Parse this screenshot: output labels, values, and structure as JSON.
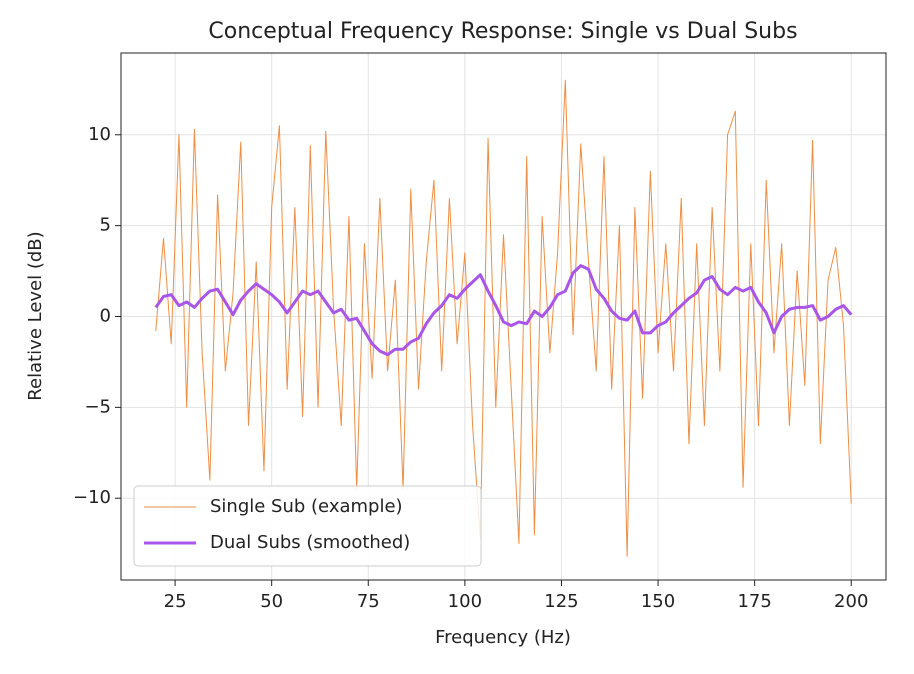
{
  "chart_data": {
    "type": "line",
    "title": "Conceptual Frequency Response: Single vs Dual Subs",
    "x_label": "Frequency (Hz)",
    "y_label": "Relative Level (dB)",
    "x": [
      20,
      22,
      24,
      26,
      28,
      30,
      32,
      34,
      36,
      38,
      40,
      42,
      44,
      46,
      48,
      50,
      52,
      54,
      56,
      58,
      60,
      62,
      64,
      66,
      68,
      70,
      72,
      74,
      76,
      78,
      80,
      82,
      84,
      86,
      88,
      90,
      92,
      94,
      96,
      98,
      100,
      102,
      104,
      106,
      108,
      110,
      112,
      114,
      116,
      118,
      120,
      122,
      124,
      126,
      128,
      130,
      132,
      134,
      136,
      138,
      140,
      142,
      144,
      146,
      148,
      150,
      152,
      154,
      156,
      158,
      160,
      162,
      164,
      166,
      168,
      170,
      172,
      174,
      176,
      178,
      180,
      182,
      184,
      186,
      188,
      190,
      192,
      194,
      196,
      198,
      200
    ],
    "series": [
      {
        "name": "Single Sub (example)",
        "color": "#ee8e45",
        "width": 1,
        "values": [
          -0.8,
          4.3,
          -1.5,
          10.0,
          -5.0,
          10.3,
          -2.0,
          -9.0,
          6.7,
          -3.0,
          1.3,
          9.6,
          -6.0,
          3.0,
          -8.5,
          6.0,
          10.5,
          -4.0,
          6.0,
          -5.5,
          9.4,
          -5.0,
          10.2,
          0.5,
          -6.0,
          5.5,
          -9.5,
          4.0,
          -3.4,
          6.5,
          -3.0,
          2.0,
          -9.5,
          7.0,
          -4.0,
          3.0,
          7.5,
          -3.0,
          6.5,
          -1.5,
          3.5,
          -6.0,
          -12.2,
          9.8,
          -5.0,
          4.5,
          -4.0,
          -12.5,
          8.8,
          -12.0,
          5.5,
          -2.0,
          3.5,
          13.0,
          -1.0,
          9.5,
          3.0,
          -3.0,
          8.8,
          -4.0,
          5.0,
          -13.2,
          6.0,
          -4.5,
          8.0,
          -2.0,
          4.0,
          -3.0,
          6.5,
          -7.0,
          4.0,
          -6.0,
          6.0,
          -3.0,
          10.0,
          11.3,
          -9.4,
          4.0,
          -6.0,
          7.5,
          -2.0,
          4.0,
          -6.0,
          2.5,
          -3.8,
          9.7,
          -7.0,
          2.0,
          3.8,
          -0.5,
          -10.3
        ]
      },
      {
        "name": "Dual Subs (smoothed)",
        "color": "#a855e8",
        "width": 3,
        "values": [
          0.5,
          1.1,
          1.2,
          0.6,
          0.8,
          0.5,
          1.0,
          1.4,
          1.5,
          0.8,
          0.1,
          0.9,
          1.4,
          1.8,
          1.5,
          1.2,
          0.8,
          0.2,
          0.8,
          1.4,
          1.2,
          1.4,
          0.8,
          0.2,
          0.4,
          -0.2,
          -0.1,
          -0.8,
          -1.5,
          -1.9,
          -2.1,
          -1.8,
          -1.8,
          -1.4,
          -1.2,
          -0.4,
          0.2,
          0.6,
          1.2,
          1.0,
          1.5,
          1.9,
          2.3,
          1.4,
          0.6,
          -0.3,
          -0.5,
          -0.3,
          -0.4,
          0.3,
          0.0,
          0.5,
          1.2,
          1.4,
          2.4,
          2.8,
          2.6,
          1.5,
          1.0,
          0.3,
          -0.1,
          -0.2,
          0.3,
          -0.9,
          -0.9,
          -0.5,
          -0.3,
          0.2,
          0.6,
          1.0,
          1.3,
          2.0,
          2.2,
          1.5,
          1.2,
          1.6,
          1.4,
          1.6,
          0.8,
          0.2,
          -0.9,
          0.0,
          0.4,
          0.5,
          0.5,
          0.6,
          -0.2,
          0.0,
          0.4,
          0.6,
          0.1
        ]
      }
    ],
    "xlim": [
      11,
      209
    ],
    "ylim": [
      -14.5,
      14.5
    ],
    "xticks": [
      25,
      50,
      75,
      100,
      125,
      150,
      175,
      200
    ],
    "yticks": [
      {
        "value": -10,
        "label": "−10"
      },
      {
        "value": -5,
        "label": "−5"
      },
      0,
      5,
      10
    ],
    "grid": true,
    "legend": "lower left"
  }
}
